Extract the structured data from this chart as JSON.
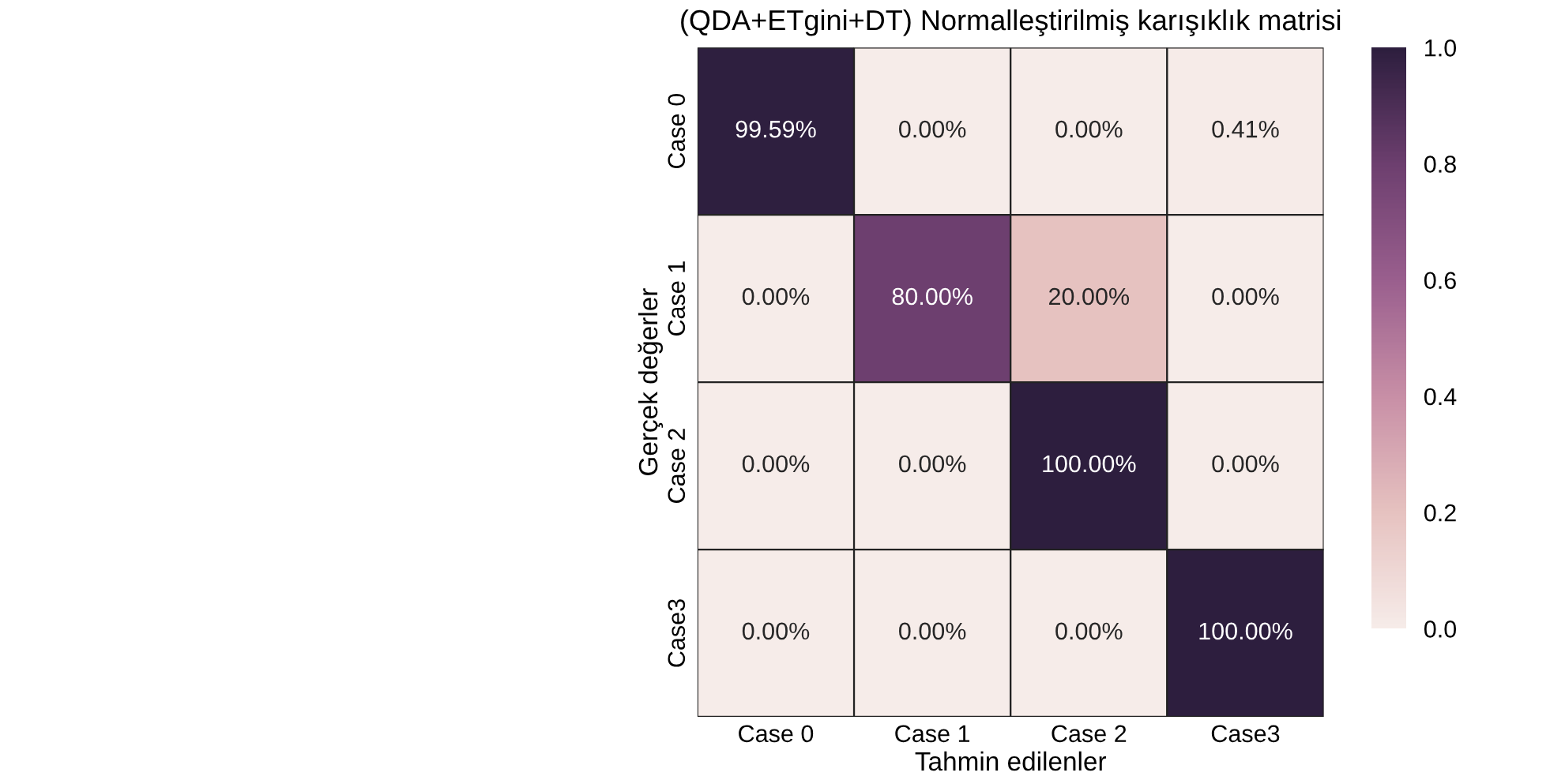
{
  "chart_data": {
    "type": "heatmap",
    "title": "(QDA+ETgini+DT) Normalleştirilmiş karışıklık matrisi",
    "xlabel": "Tahmin edilenler",
    "ylabel": "Gerçek değerler",
    "categories": [
      "Case 0",
      "Case 1",
      "Case 2",
      "Case3"
    ],
    "y_categories": [
      "Case 0",
      "Case 1",
      "Case 2",
      "Case3"
    ],
    "cells": [
      [
        0.9959,
        0.0,
        0.0,
        0.0041
      ],
      [
        0.0,
        0.8,
        0.2,
        0.0
      ],
      [
        0.0,
        0.0,
        1.0,
        0.0
      ],
      [
        0.0,
        0.0,
        0.0,
        1.0
      ]
    ],
    "cell_labels": [
      [
        "99.59%",
        "0.00%",
        "0.00%",
        "0.41%"
      ],
      [
        "0.00%",
        "80.00%",
        "20.00%",
        "0.00%"
      ],
      [
        "0.00%",
        "0.00%",
        "100.00%",
        "0.00%"
      ],
      [
        "0.00%",
        "0.00%",
        "0.00%",
        "100.00%"
      ]
    ],
    "colors": [
      "#f6ece9",
      "#e6c2c0",
      "#c88fa6",
      "#9a5f8e",
      "#6d3f6f",
      "#2d1e3e"
    ],
    "clim": [
      0.0,
      1.0
    ],
    "cticks": [
      {
        "value": 0.0,
        "label": "0.0"
      },
      {
        "value": 0.2,
        "label": "0.2"
      },
      {
        "value": 0.4,
        "label": "0.4"
      },
      {
        "value": 0.6,
        "label": "0.6"
      },
      {
        "value": 0.8,
        "label": "0.8"
      },
      {
        "value": 1.0,
        "label": "1.0"
      }
    ]
  }
}
